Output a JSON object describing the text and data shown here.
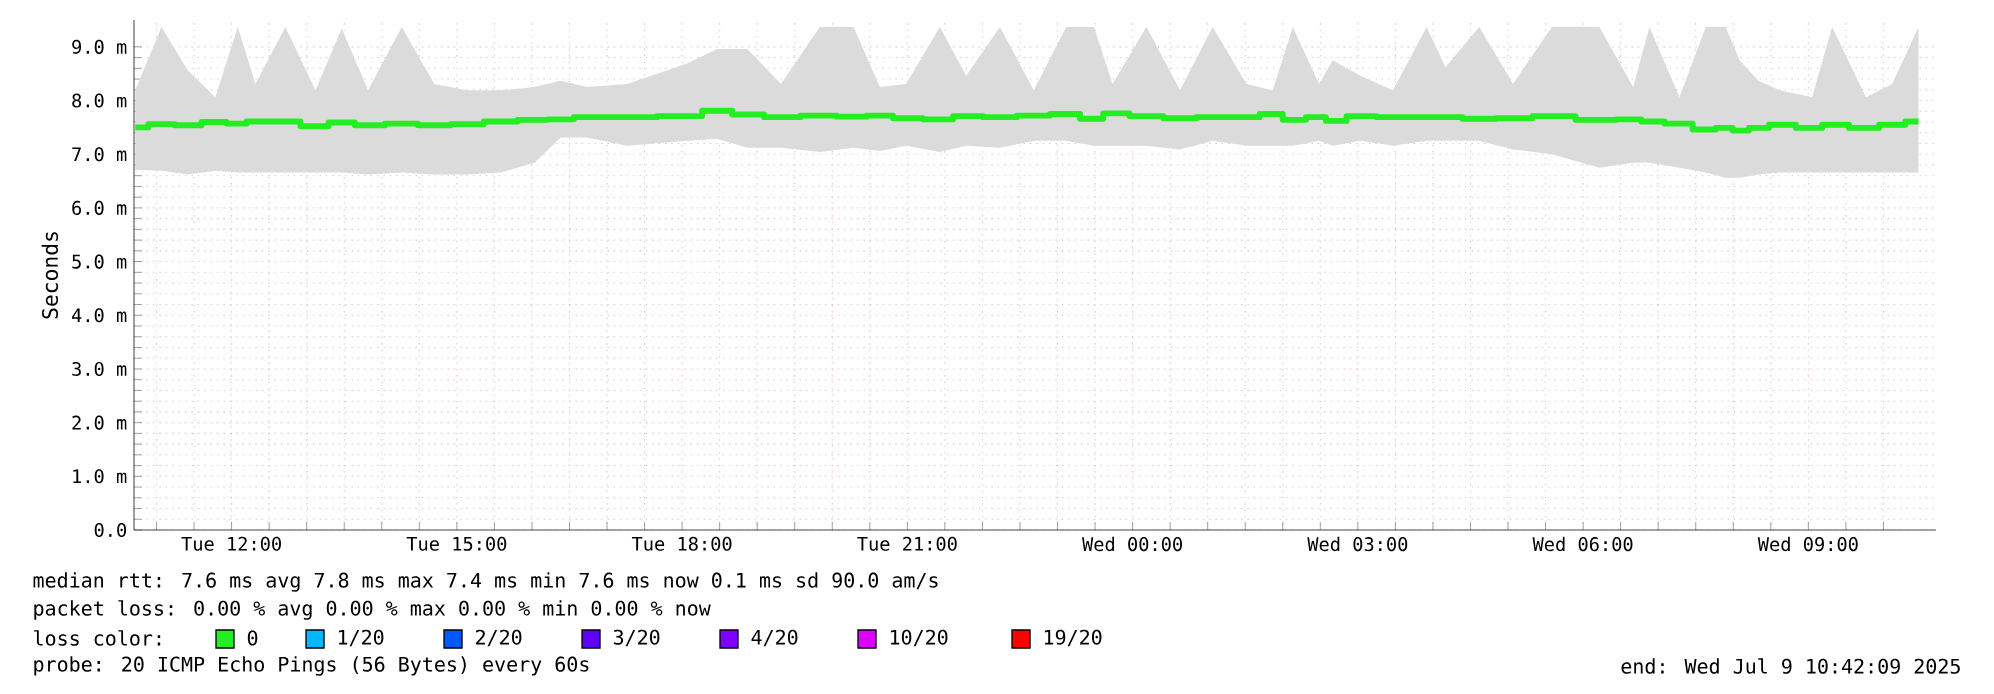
{
  "chart_data": {
    "type": "step",
    "ylabel": "Seconds",
    "xlim": [
      "2025-07-08T10:42",
      "2025-07-09T10:42"
    ],
    "ylim": [
      0,
      9.5
    ],
    "xticks": [
      {
        "value": "2025-07-08T11:00",
        "label": null
      },
      {
        "value": "2025-07-08T12:00",
        "label": "Tue 12:00"
      },
      {
        "value": "2025-07-08T13:00",
        "label": null
      },
      {
        "value": "2025-07-08T14:00",
        "label": null
      },
      {
        "value": "2025-07-08T15:00",
        "label": "Tue 15:00"
      },
      {
        "value": "2025-07-08T16:00",
        "label": null
      },
      {
        "value": "2025-07-08T17:00",
        "label": null
      },
      {
        "value": "2025-07-08T18:00",
        "label": "Tue 18:00"
      },
      {
        "value": "2025-07-08T19:00",
        "label": null
      },
      {
        "value": "2025-07-08T20:00",
        "label": null
      },
      {
        "value": "2025-07-08T21:00",
        "label": "Tue 21:00"
      },
      {
        "value": "2025-07-08T22:00",
        "label": null
      },
      {
        "value": "2025-07-08T23:00",
        "label": null
      },
      {
        "value": "2025-07-09T00:00",
        "label": "Wed 00:00"
      },
      {
        "value": "2025-07-09T01:00",
        "label": null
      },
      {
        "value": "2025-07-09T02:00",
        "label": null
      },
      {
        "value": "2025-07-09T03:00",
        "label": "Wed 03:00"
      },
      {
        "value": "2025-07-09T04:00",
        "label": null
      },
      {
        "value": "2025-07-09T05:00",
        "label": null
      },
      {
        "value": "2025-07-09T06:00",
        "label": "Wed 06:00"
      },
      {
        "value": "2025-07-09T07:00",
        "label": null
      },
      {
        "value": "2025-07-09T08:00",
        "label": null
      },
      {
        "value": "2025-07-09T09:00",
        "label": "Wed 09:00"
      },
      {
        "value": "2025-07-09T10:00",
        "label": null
      }
    ],
    "yticks": [
      {
        "value": 0,
        "label": "0.0"
      },
      {
        "value": 1,
        "label": "1.0 m"
      },
      {
        "value": 2,
        "label": "2.0 m"
      },
      {
        "value": 3,
        "label": "3.0 m"
      },
      {
        "value": 4,
        "label": "4.0 m"
      },
      {
        "value": 5,
        "label": "5.0 m"
      },
      {
        "value": 6,
        "label": "6.0 m"
      },
      {
        "value": 7,
        "label": "7.0 m"
      },
      {
        "value": 8,
        "label": "8.0 m"
      },
      {
        "value": 9,
        "label": "9.0 m"
      }
    ],
    "grid": true,
    "legend": "bottom",
    "legend_title": "loss color:",
    "series": [
      {
        "name": "0",
        "color": "#22ee22",
        "x": [
          "2025-07-08T10:43",
          "2025-07-08T11:04",
          "2025-07-08T11:25",
          "2025-07-08T11:47",
          "2025-07-08T12:05",
          "2025-07-08T12:19",
          "2025-07-08T12:43",
          "2025-07-08T13:07",
          "2025-07-08T13:28",
          "2025-07-08T13:49",
          "2025-07-08T14:16",
          "2025-07-08T14:42",
          "2025-07-08T15:08",
          "2025-07-08T15:35",
          "2025-07-08T16:02",
          "2025-07-08T16:23",
          "2025-07-08T16:44",
          "2025-07-08T17:16",
          "2025-07-08T18:04",
          "2025-07-08T18:28",
          "2025-07-08T18:52",
          "2025-07-08T19:19",
          "2025-07-08T19:50",
          "2025-07-08T20:17",
          "2025-07-08T20:38",
          "2025-07-08T20:59",
          "2025-07-08T21:26",
          "2025-07-08T21:47",
          "2025-07-08T22:14",
          "2025-07-08T22:41",
          "2025-07-08T23:07",
          "2025-07-08T23:29",
          "2025-07-08T23:44",
          "2025-07-09T00:11",
          "2025-07-09T00:38",
          "2025-07-09T01:04",
          "2025-07-09T01:31",
          "2025-07-09T01:52",
          "2025-07-09T02:08",
          "2025-07-09T02:29",
          "2025-07-09T02:40",
          "2025-07-09T03:02",
          "2025-07-09T03:28",
          "2025-07-09T03:55",
          "2025-07-09T04:10",
          "2025-07-09T04:37",
          "2025-07-09T05:04",
          "2025-07-09T05:35",
          "2025-07-09T06:13",
          "2025-07-09T06:40",
          "2025-07-09T06:53",
          "2025-07-09T07:17",
          "2025-07-09T07:38",
          "2025-07-09T07:54",
          "2025-07-09T08:05",
          "2025-07-09T08:20",
          "2025-07-09T08:37",
          "2025-07-09T09:03",
          "2025-07-09T09:19",
          "2025-07-09T09:46",
          "2025-07-09T10:07",
          "2025-07-09T10:28"
        ],
        "values": [
          7.5,
          7.56,
          7.54,
          7.6,
          7.57,
          7.61,
          7.61,
          7.52,
          7.59,
          7.54,
          7.57,
          7.54,
          7.56,
          7.61,
          7.64,
          7.65,
          7.69,
          7.69,
          7.71,
          7.81,
          7.74,
          7.69,
          7.72,
          7.7,
          7.72,
          7.67,
          7.65,
          7.71,
          7.69,
          7.72,
          7.75,
          7.66,
          7.76,
          7.71,
          7.67,
          7.69,
          7.69,
          7.75,
          7.64,
          7.69,
          7.62,
          7.71,
          7.69,
          7.69,
          7.69,
          7.66,
          7.67,
          7.71,
          7.64,
          7.65,
          7.61,
          7.57,
          7.46,
          7.49,
          7.44,
          7.49,
          7.55,
          7.49,
          7.55,
          7.49,
          7.55,
          7.61
        ],
        "upper": [
          8.19,
          9.37,
          8.56,
          8.06,
          9.37,
          8.31,
          9.37,
          8.19,
          9.34,
          8.19,
          9.37,
          8.31,
          8.19,
          8.19,
          8.25,
          8.37,
          8.25,
          8.31,
          8.69,
          8.96,
          8.96,
          8.31,
          9.37,
          9.37,
          8.25,
          8.31,
          9.37,
          8.46,
          9.37,
          8.19,
          9.37,
          9.37,
          8.31,
          9.37,
          8.19,
          9.37,
          8.31,
          8.19,
          9.37,
          8.31,
          8.75,
          8.46,
          8.19,
          9.37,
          8.62,
          9.37,
          8.31,
          9.37,
          9.37,
          8.25,
          9.37,
          8.06,
          9.37,
          9.37,
          8.75,
          8.37,
          8.19,
          8.06,
          9.37,
          8.06,
          8.31,
          9.37
        ],
        "lower": [
          6.71,
          6.69,
          6.62,
          6.69,
          6.66,
          6.66,
          6.66,
          6.66,
          6.66,
          6.62,
          6.66,
          6.62,
          6.62,
          6.66,
          6.84,
          7.31,
          7.31,
          7.16,
          7.25,
          7.29,
          7.12,
          7.12,
          7.04,
          7.12,
          7.06,
          7.16,
          7.04,
          7.16,
          7.12,
          7.25,
          7.25,
          7.16,
          7.16,
          7.16,
          7.09,
          7.25,
          7.16,
          7.16,
          7.16,
          7.25,
          7.16,
          7.25,
          7.16,
          7.25,
          7.25,
          7.25,
          7.09,
          7.0,
          6.75,
          6.84,
          6.84,
          6.75,
          6.66,
          6.56,
          6.56,
          6.62,
          6.66,
          6.66,
          6.66,
          6.66,
          6.66,
          6.66
        ]
      },
      {
        "name": "1/20",
        "color": "#00b8ff",
        "values": [
          null
        ]
      },
      {
        "name": "2/20",
        "color": "#0059ff",
        "values": [
          null
        ]
      },
      {
        "name": "3/20",
        "color": "#5e00ff",
        "values": [
          null
        ]
      },
      {
        "name": "4/20",
        "color": "#7e00ff",
        "values": [
          null
        ]
      },
      {
        "name": "10/20",
        "color": "#dd00ff",
        "values": [
          null
        ]
      },
      {
        "name": "19/20",
        "color": "#ff0000",
        "values": [
          null
        ]
      }
    ],
    "annotations": [
      "median rtt:  7.6 ms avg  7.8 ms max  7.4 ms min  7.6 ms now  0.1 ms sd  90.0   am/s",
      "packet loss: 0.00 % avg  0.00 % max  0.00 % min  0.00 % now",
      "probe:       20 ICMP Echo Pings (56 Bytes) every 60s",
      "end: Wed Jul  9 10:42:09 2025"
    ]
  }
}
